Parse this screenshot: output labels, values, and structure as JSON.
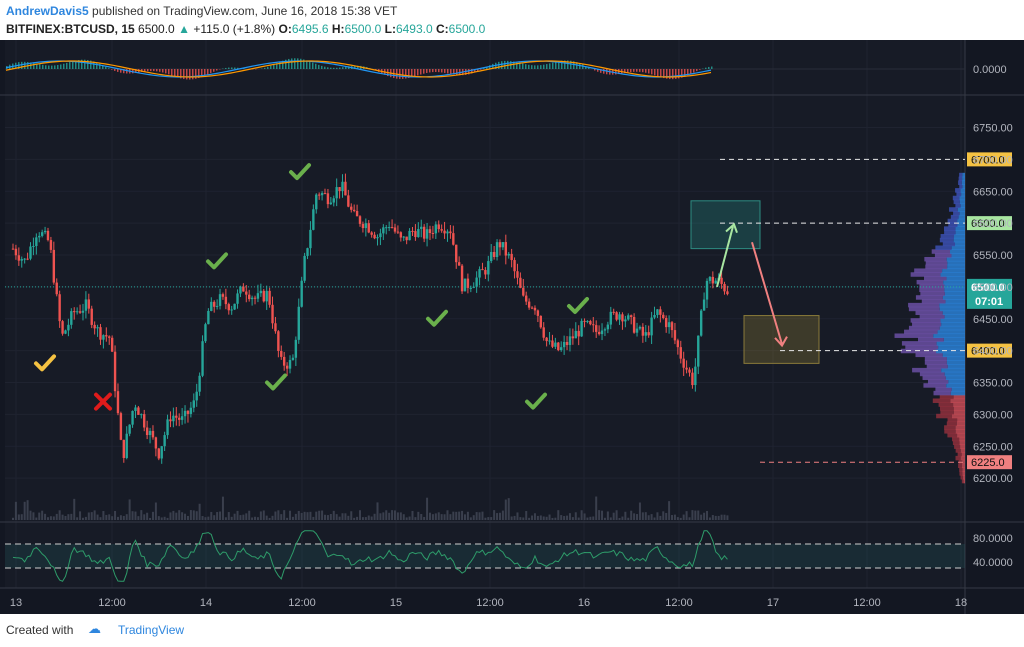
{
  "header": {
    "author": "AndrewDavis5",
    "published": "published on TradingView.com, June 16, 2018 15:38 VET",
    "symbol": "BITFINEX:BTCUSD, 15",
    "last": "6500.0",
    "change": "+115.0 (+1.8%)",
    "o_label": "O:",
    "o_val": "6495.6",
    "h_label": "H:",
    "h_val": "6500.0",
    "l_label": "L:",
    "l_val": "6493.0",
    "c_label": "C:",
    "c_val": "6500.0"
  },
  "footer": {
    "created": "Created with",
    "brand": "TradingView"
  },
  "colors": {
    "background": "#131722",
    "up": "#26a69a",
    "down": "#ef5350",
    "check": "#6ab04c",
    "cross": "#e01b1b",
    "check_yellow": "#f5c242"
  },
  "chart_data": {
    "type": "candlestick",
    "instrument": "BITFINEX:BTCUSD",
    "interval": "15",
    "ylim": [
      6150,
      6790
    ],
    "y_ticks": [
      6200,
      6250,
      6300,
      6350,
      6400,
      6450,
      6500,
      6550,
      6600,
      6650,
      6700,
      6750
    ],
    "x_ticks": [
      "13",
      "12:00",
      "14",
      "12:00",
      "15",
      "12:00",
      "16",
      "12:00",
      "17",
      "12:00",
      "18"
    ],
    "price_path": [
      {
        "t": 0.0,
        "p": 6560
      },
      {
        "t": 0.5,
        "p": 6540
      },
      {
        "t": 1.0,
        "p": 6590
      },
      {
        "t": 1.5,
        "p": 6570
      },
      {
        "t": 2.0,
        "p": 6420
      },
      {
        "t": 2.5,
        "p": 6460
      },
      {
        "t": 3.0,
        "p": 6470
      },
      {
        "t": 3.5,
        "p": 6430
      },
      {
        "t": 4.0,
        "p": 6420
      },
      {
        "t": 4.5,
        "p": 6230
      },
      {
        "t": 5.0,
        "p": 6320
      },
      {
        "t": 5.5,
        "p": 6280
      },
      {
        "t": 6.0,
        "p": 6240
      },
      {
        "t": 6.5,
        "p": 6300
      },
      {
        "t": 7.0,
        "p": 6290
      },
      {
        "t": 7.5,
        "p": 6320
      },
      {
        "t": 8.0,
        "p": 6460
      },
      {
        "t": 8.5,
        "p": 6480
      },
      {
        "t": 9.0,
        "p": 6470
      },
      {
        "t": 9.5,
        "p": 6500
      },
      {
        "t": 10.0,
        "p": 6480
      },
      {
        "t": 10.5,
        "p": 6490
      },
      {
        "t": 11.0,
        "p": 6380
      },
      {
        "t": 11.5,
        "p": 6380
      },
      {
        "t": 12.0,
        "p": 6540
      },
      {
        "t": 12.5,
        "p": 6650
      },
      {
        "t": 13.0,
        "p": 6640
      },
      {
        "t": 13.5,
        "p": 6660
      },
      {
        "t": 14.0,
        "p": 6610
      },
      {
        "t": 14.5,
        "p": 6600
      },
      {
        "t": 15.0,
        "p": 6580
      },
      {
        "t": 15.5,
        "p": 6600
      },
      {
        "t": 16.0,
        "p": 6570
      },
      {
        "t": 16.5,
        "p": 6590
      },
      {
        "t": 17.0,
        "p": 6580
      },
      {
        "t": 17.5,
        "p": 6600
      },
      {
        "t": 18.0,
        "p": 6590
      },
      {
        "t": 18.5,
        "p": 6500
      },
      {
        "t": 19.0,
        "p": 6510
      },
      {
        "t": 19.5,
        "p": 6530
      },
      {
        "t": 20.0,
        "p": 6570
      },
      {
        "t": 20.5,
        "p": 6540
      },
      {
        "t": 21.0,
        "p": 6480
      },
      {
        "t": 21.5,
        "p": 6470
      },
      {
        "t": 22.0,
        "p": 6410
      },
      {
        "t": 22.5,
        "p": 6400
      },
      {
        "t": 23.0,
        "p": 6420
      },
      {
        "t": 23.5,
        "p": 6440
      },
      {
        "t": 24.0,
        "p": 6430
      },
      {
        "t": 24.5,
        "p": 6450
      },
      {
        "t": 25.0,
        "p": 6460
      },
      {
        "t": 25.5,
        "p": 6440
      },
      {
        "t": 26.0,
        "p": 6420
      },
      {
        "t": 26.5,
        "p": 6460
      },
      {
        "t": 27.0,
        "p": 6440
      },
      {
        "t": 27.5,
        "p": 6390
      },
      {
        "t": 28.0,
        "p": 6350
      },
      {
        "t": 28.5,
        "p": 6510
      },
      {
        "t": 29.0,
        "p": 6510
      },
      {
        "t": 29.5,
        "p": 6490
      }
    ],
    "horizontal_levels": [
      {
        "price": 6700.0,
        "label": "6700.0",
        "color": "#f5c242"
      },
      {
        "price": 6600.0,
        "label": "6600.0",
        "color": "#a8e6a1"
      },
      {
        "price": 6400.0,
        "label": "6400.0",
        "color": "#f5c242"
      },
      {
        "price": 6225.0,
        "label": "6225.0",
        "color": "#f08080"
      }
    ],
    "current_price": {
      "price": 6500.0,
      "label": "6500.0",
      "countdown": "07:01"
    },
    "zones": [
      {
        "name": "target-up",
        "price_low": 6560,
        "price_high": 6635
      },
      {
        "name": "target-down",
        "price_low": 6380,
        "price_high": 6455
      }
    ],
    "annotations": [
      {
        "type": "check",
        "color": "green",
        "t": 13.2,
        "price": 6680
      },
      {
        "type": "check",
        "color": "green",
        "t": 9.4,
        "price": 6540
      },
      {
        "type": "check",
        "color": "green",
        "t": 12.1,
        "price": 6350
      },
      {
        "type": "check",
        "color": "green",
        "t": 19.3,
        "price": 6450
      },
      {
        "type": "check",
        "color": "green",
        "t": 25.5,
        "price": 6470
      },
      {
        "type": "check",
        "color": "green",
        "t": 23.5,
        "price": 6320
      },
      {
        "type": "check",
        "color": "yellow",
        "t": 1.8,
        "price": 6380
      },
      {
        "type": "cross",
        "color": "red",
        "t": 4.4,
        "price": 6320
      }
    ],
    "macd_pane": {
      "zero_label": "0.0000"
    },
    "rsi_pane": {
      "tick_labels": [
        "80.0000",
        "40.0000"
      ],
      "range": [
        0,
        100
      ],
      "bands": [
        70,
        30
      ]
    }
  }
}
